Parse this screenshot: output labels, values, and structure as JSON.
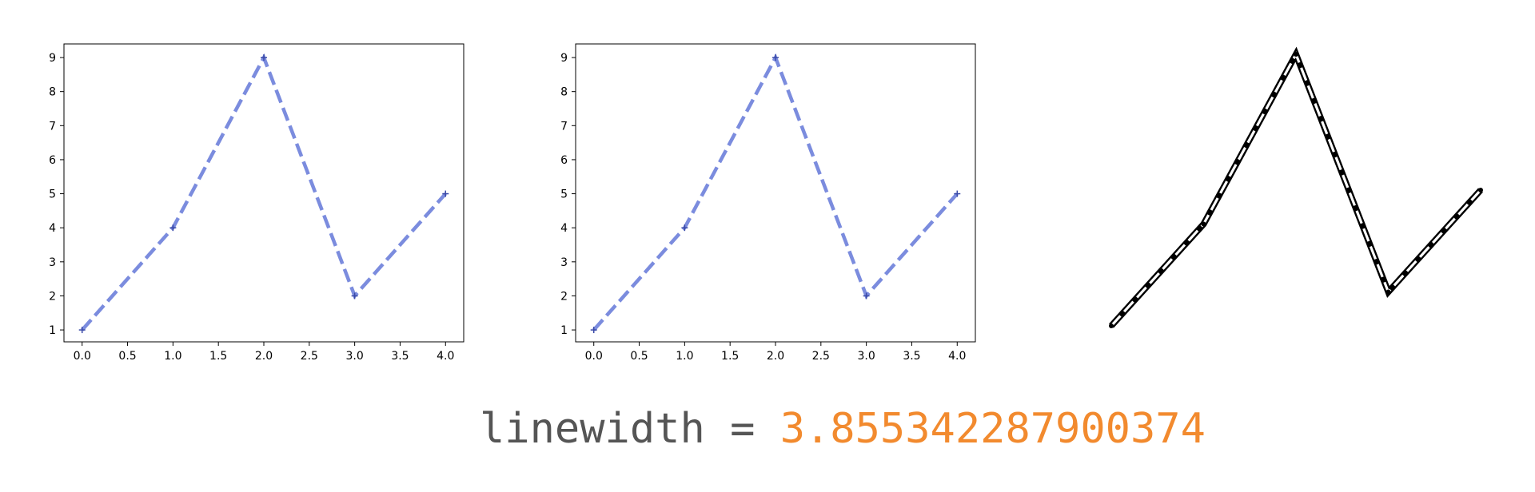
{
  "chart_data": [
    {
      "type": "line",
      "x": [
        0,
        1,
        2,
        3,
        4
      ],
      "series": [
        {
          "values": [
            1,
            4,
            9,
            2,
            5
          ],
          "color": "#7b8cde",
          "linestyle": "dashed",
          "marker": "+"
        }
      ],
      "xlim": [
        -0.2,
        4.2
      ],
      "ylim": [
        0.65,
        9.4
      ],
      "xticks": [
        "0.0",
        "0.5",
        "1.0",
        "1.5",
        "2.0",
        "2.5",
        "3.0",
        "3.5",
        "4.0"
      ],
      "yticks": [
        "1",
        "2",
        "3",
        "4",
        "5",
        "6",
        "7",
        "8",
        "9"
      ],
      "grid": false
    },
    {
      "type": "line",
      "x": [
        0,
        1,
        2,
        3,
        4
      ],
      "series": [
        {
          "values": [
            1,
            4,
            9,
            2,
            5
          ],
          "color": "#7b8cde",
          "linestyle": "dashed",
          "marker": "+"
        }
      ],
      "xlim": [
        -0.2,
        4.2
      ],
      "ylim": [
        0.65,
        9.4
      ],
      "xticks": [
        "0.0",
        "0.5",
        "1.0",
        "1.5",
        "2.0",
        "2.5",
        "3.0",
        "3.5",
        "4.0"
      ],
      "yticks": [
        "1",
        "2",
        "3",
        "4",
        "5",
        "6",
        "7",
        "8",
        "9"
      ],
      "grid": false
    },
    {
      "type": "line",
      "x": [
        0,
        1,
        2,
        3,
        4
      ],
      "series": [
        {
          "values": [
            1,
            4,
            9,
            2,
            5
          ],
          "color": "#000000",
          "linestyle": "dashed-outline"
        }
      ],
      "axes_visible": false
    }
  ],
  "caption": {
    "label": "linewidth = ",
    "value": "3.855342287900374",
    "label_color": "#555555",
    "value_color": "#f28a2e"
  }
}
